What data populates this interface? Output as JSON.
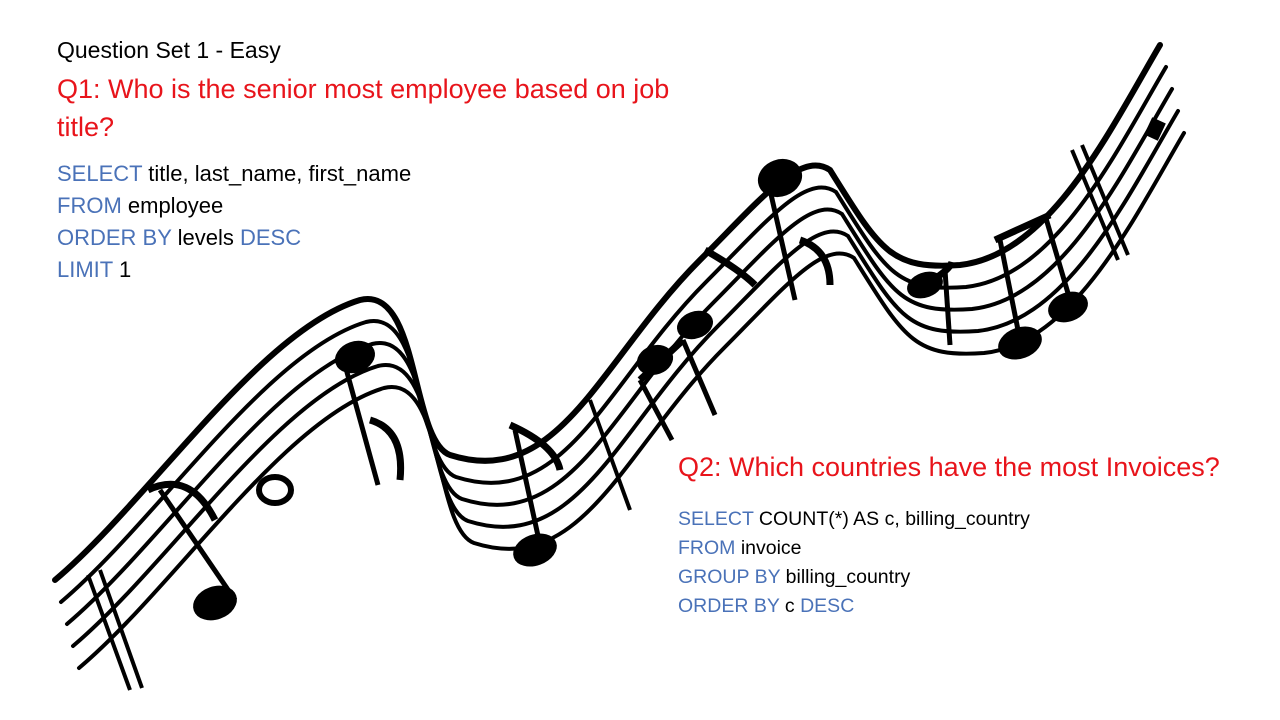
{
  "slide": {
    "set_title": "Question Set 1 - Easy",
    "q1": {
      "question": "Q1: Who is the senior most employee based on job title?",
      "code": [
        {
          "kw": "SELECT",
          "rest": " title, last_name, first_name",
          "kw2": ""
        },
        {
          "kw": "FROM",
          "rest": " employee",
          "kw2": ""
        },
        {
          "kw": "ORDER BY",
          "rest": " levels ",
          "kw2": "DESC"
        },
        {
          "kw": "LIMIT",
          "rest": " 1",
          "kw2": ""
        }
      ]
    },
    "q2": {
      "question": "Q2: Which countries have the most Invoices?",
      "code": [
        {
          "kw": "SELECT",
          "rest": " COUNT(*) AS c, billing_country",
          "kw2": ""
        },
        {
          "kw": "FROM",
          "rest": " invoice",
          "kw2": ""
        },
        {
          "kw": "GROUP BY",
          "rest": " billing_country",
          "kw2": ""
        },
        {
          "kw": "ORDER BY",
          "rest": " c ",
          "kw2": "DESC"
        }
      ]
    },
    "colors": {
      "question": "#e8141b",
      "keyword": "#4a72b8",
      "text": "#000000"
    },
    "illustration": "music-staff-with-notes"
  }
}
